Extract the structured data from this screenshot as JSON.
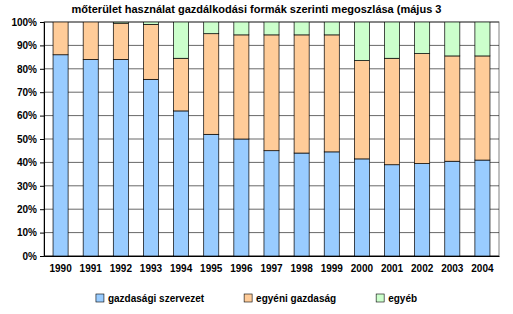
{
  "chart_data": {
    "type": "bar",
    "title": "mőterület használat gazdálkodási formák szerinti megoszlása (május 3",
    "stacked": true,
    "grid": true,
    "legend": "bottom",
    "categories": [
      "1990",
      "1991",
      "1992",
      "1993",
      "1994",
      "1995",
      "1996",
      "1997",
      "1998",
      "1999",
      "2000",
      "2001",
      "2002",
      "2003",
      "2004"
    ],
    "series": [
      {
        "name": "gazdasági szervezet",
        "color": "#99ccff",
        "values": [
          86,
          84,
          84,
          75.5,
          62,
          52,
          50,
          45,
          44,
          44.5,
          41.5,
          39,
          39.5,
          40.5,
          41
        ]
      },
      {
        "name": "egyéni gazdaság",
        "color": "#ffcc99",
        "values": [
          14,
          16,
          15.5,
          23.5,
          22.5,
          43,
          44.5,
          49.5,
          50.5,
          50,
          42,
          45.5,
          47,
          45,
          44.5
        ]
      },
      {
        "name": "egyéb",
        "color": "#ccffcc",
        "values": [
          0,
          0,
          0.5,
          1,
          15.5,
          5,
          5.5,
          5.5,
          5.5,
          5.5,
          16.5,
          15.5,
          13.5,
          14.5,
          14.5
        ]
      }
    ],
    "ylim": [
      0,
      100
    ],
    "yticks": [
      {
        "value": 0,
        "label": "0%"
      },
      {
        "value": 10,
        "label": "10%"
      },
      {
        "value": 20,
        "label": "20%"
      },
      {
        "value": 30,
        "label": "30%"
      },
      {
        "value": 40,
        "label": "40%"
      },
      {
        "value": 50,
        "label": "50%"
      },
      {
        "value": 60,
        "label": "60%"
      },
      {
        "value": 70,
        "label": "70%"
      },
      {
        "value": 80,
        "label": "80%"
      },
      {
        "value": 90,
        "label": "90%"
      },
      {
        "value": 100,
        "label": "100%"
      }
    ]
  }
}
